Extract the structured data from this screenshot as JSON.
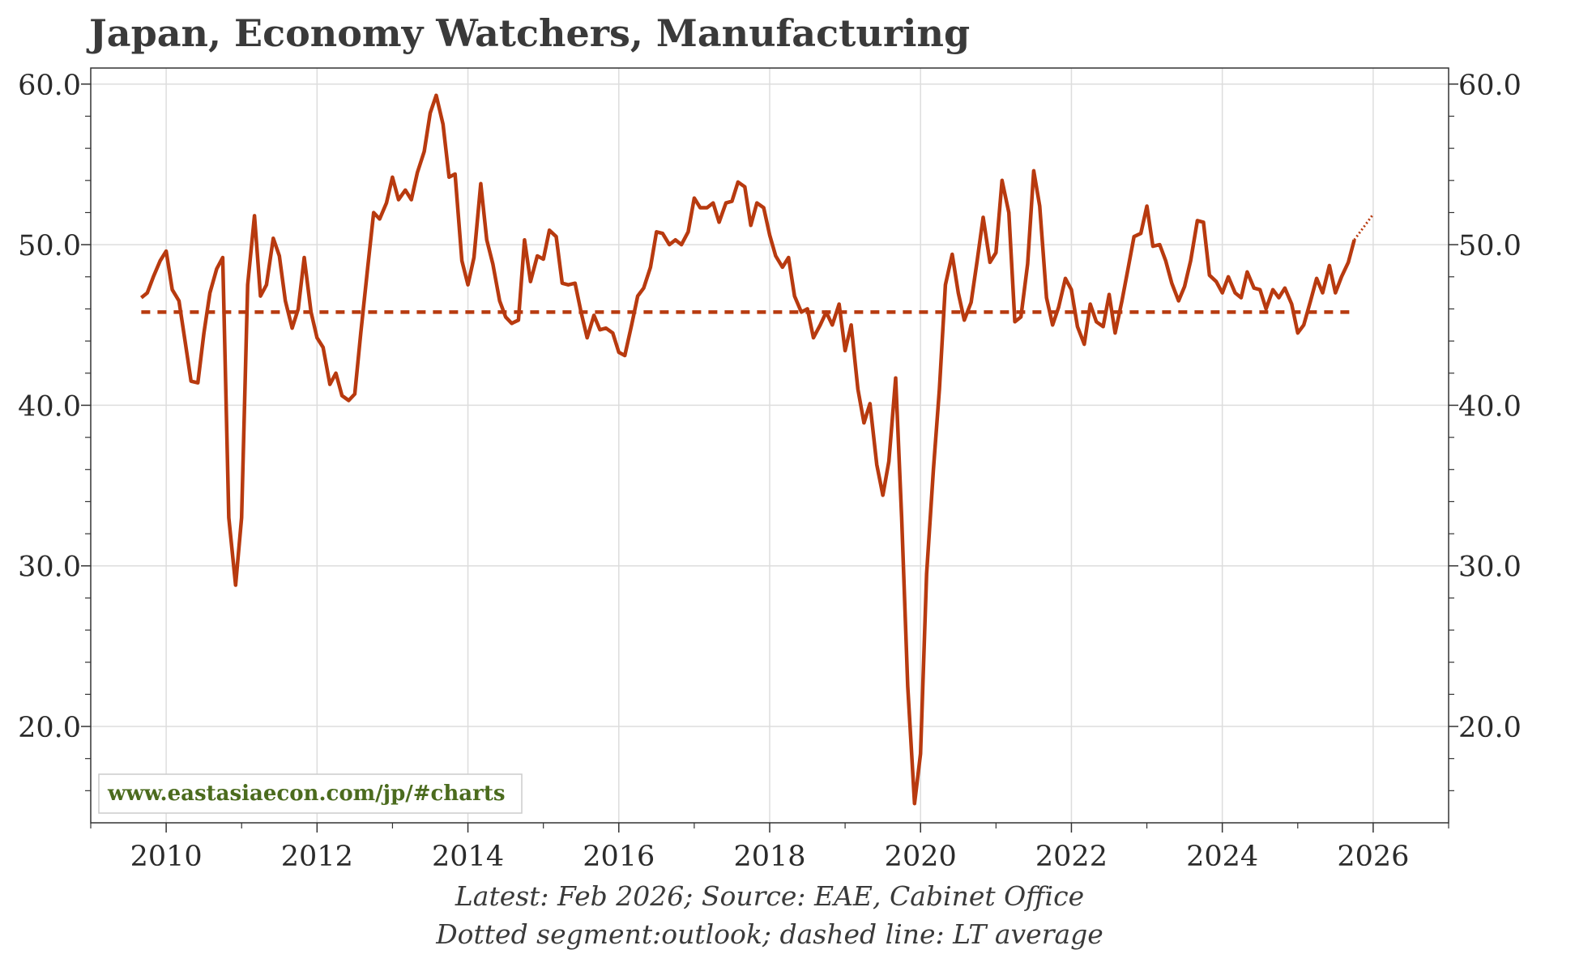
{
  "colors": {
    "series": "#b83a0f",
    "watermark": "#4b6b1e",
    "grid": "#dddddd",
    "axis": "#333333"
  },
  "chart_data": {
    "type": "line",
    "title": "Japan, Economy Watchers, Manufacturing",
    "xlabel": "",
    "ylabel": "",
    "xlim": [
      2009.0,
      2027.0
    ],
    "ylim": [
      14.0,
      61.0
    ],
    "x_ticks": [
      2010,
      2012,
      2014,
      2016,
      2018,
      2020,
      2022,
      2024,
      2026
    ],
    "x_tick_labels": [
      "2010",
      "2012",
      "2014",
      "2016",
      "2018",
      "2020",
      "2022",
      "2024",
      "2026"
    ],
    "y_ticks": [
      20,
      30,
      40,
      50,
      60
    ],
    "y_tick_labels": [
      "20.0",
      "30.0",
      "40.0",
      "50.0",
      "60.0"
    ],
    "grid": true,
    "lt_average": 45.8,
    "series": [
      {
        "name": "Economy Watchers, Manufacturing",
        "style": "solid",
        "points": [
          [
            2009.67,
            46.7
          ],
          [
            2009.75,
            47.0
          ],
          [
            2009.83,
            48.0
          ],
          [
            2009.92,
            49.0
          ],
          [
            2010.0,
            49.6
          ],
          [
            2010.08,
            47.2
          ],
          [
            2010.17,
            46.5
          ],
          [
            2010.25,
            44.0
          ],
          [
            2010.33,
            41.5
          ],
          [
            2010.42,
            41.4
          ],
          [
            2010.5,
            44.5
          ],
          [
            2010.58,
            47.0
          ],
          [
            2010.67,
            48.5
          ],
          [
            2010.75,
            49.2
          ],
          [
            2010.83,
            33.0
          ],
          [
            2010.92,
            28.8
          ],
          [
            2011.0,
            33.0
          ],
          [
            2011.08,
            47.5
          ],
          [
            2011.17,
            51.8
          ],
          [
            2011.25,
            46.8
          ],
          [
            2011.33,
            47.5
          ],
          [
            2011.42,
            50.4
          ],
          [
            2011.5,
            49.3
          ],
          [
            2011.58,
            46.5
          ],
          [
            2011.67,
            44.8
          ],
          [
            2011.75,
            46.0
          ],
          [
            2011.83,
            49.2
          ],
          [
            2011.92,
            45.8
          ],
          [
            2012.0,
            44.2
          ],
          [
            2012.08,
            43.6
          ],
          [
            2012.17,
            41.3
          ],
          [
            2012.25,
            42.0
          ],
          [
            2012.33,
            40.6
          ],
          [
            2012.42,
            40.3
          ],
          [
            2012.5,
            40.7
          ],
          [
            2012.58,
            44.5
          ],
          [
            2012.67,
            48.5
          ],
          [
            2012.75,
            52.0
          ],
          [
            2012.83,
            51.6
          ],
          [
            2012.92,
            52.6
          ],
          [
            2013.0,
            54.2
          ],
          [
            2013.08,
            52.8
          ],
          [
            2013.17,
            53.4
          ],
          [
            2013.25,
            52.8
          ],
          [
            2013.33,
            54.5
          ],
          [
            2013.42,
            55.8
          ],
          [
            2013.5,
            58.2
          ],
          [
            2013.58,
            59.3
          ],
          [
            2013.67,
            57.5
          ],
          [
            2013.75,
            54.2
          ],
          [
            2013.83,
            54.4
          ],
          [
            2013.92,
            49.0
          ],
          [
            2014.0,
            47.5
          ],
          [
            2014.08,
            49.2
          ],
          [
            2014.17,
            53.8
          ],
          [
            2014.25,
            50.3
          ],
          [
            2014.33,
            48.8
          ],
          [
            2014.42,
            46.5
          ],
          [
            2014.5,
            45.5
          ],
          [
            2014.58,
            45.1
          ],
          [
            2014.67,
            45.3
          ],
          [
            2014.75,
            50.3
          ],
          [
            2014.83,
            47.7
          ],
          [
            2014.92,
            49.3
          ],
          [
            2015.0,
            49.1
          ],
          [
            2015.08,
            50.9
          ],
          [
            2015.17,
            50.5
          ],
          [
            2015.25,
            47.6
          ],
          [
            2015.33,
            47.5
          ],
          [
            2015.42,
            47.6
          ],
          [
            2015.5,
            45.8
          ],
          [
            2015.58,
            44.2
          ],
          [
            2015.67,
            45.6
          ],
          [
            2015.75,
            44.7
          ],
          [
            2015.83,
            44.8
          ],
          [
            2015.92,
            44.5
          ],
          [
            2016.0,
            43.3
          ],
          [
            2016.08,
            43.1
          ],
          [
            2016.17,
            45.0
          ],
          [
            2016.25,
            46.8
          ],
          [
            2016.33,
            47.3
          ],
          [
            2016.42,
            48.6
          ],
          [
            2016.5,
            50.8
          ],
          [
            2016.58,
            50.7
          ],
          [
            2016.67,
            50.0
          ],
          [
            2016.75,
            50.3
          ],
          [
            2016.83,
            50.0
          ],
          [
            2016.92,
            50.8
          ],
          [
            2017.0,
            52.9
          ],
          [
            2017.08,
            52.3
          ],
          [
            2017.17,
            52.3
          ],
          [
            2017.25,
            52.6
          ],
          [
            2017.33,
            51.4
          ],
          [
            2017.42,
            52.6
          ],
          [
            2017.5,
            52.7
          ],
          [
            2017.58,
            53.9
          ],
          [
            2017.67,
            53.6
          ],
          [
            2017.75,
            51.2
          ],
          [
            2017.83,
            52.6
          ],
          [
            2017.92,
            52.3
          ],
          [
            2018.0,
            50.6
          ],
          [
            2018.08,
            49.3
          ],
          [
            2018.17,
            48.6
          ],
          [
            2018.25,
            49.2
          ],
          [
            2018.33,
            46.8
          ],
          [
            2018.42,
            45.8
          ],
          [
            2018.5,
            46.0
          ],
          [
            2018.58,
            44.2
          ],
          [
            2018.67,
            45.0
          ],
          [
            2018.75,
            45.8
          ],
          [
            2018.83,
            45.0
          ],
          [
            2018.92,
            46.3
          ],
          [
            2019.0,
            43.4
          ],
          [
            2019.08,
            45.0
          ],
          [
            2019.17,
            41.0
          ],
          [
            2019.25,
            38.9
          ],
          [
            2019.33,
            40.1
          ],
          [
            2019.42,
            36.3
          ],
          [
            2019.5,
            34.4
          ],
          [
            2019.58,
            36.5
          ],
          [
            2019.67,
            41.7
          ],
          [
            2019.75,
            33.0
          ],
          [
            2019.83,
            22.5
          ],
          [
            2019.92,
            15.2
          ],
          [
            2020.0,
            18.3
          ],
          [
            2020.08,
            29.5
          ],
          [
            2020.17,
            36.0
          ],
          [
            2020.25,
            41.0
          ],
          [
            2020.33,
            47.5
          ],
          [
            2020.42,
            49.4
          ],
          [
            2020.5,
            47.0
          ],
          [
            2020.58,
            45.3
          ],
          [
            2020.67,
            46.4
          ],
          [
            2020.75,
            49.0
          ],
          [
            2020.83,
            51.7
          ],
          [
            2020.92,
            48.9
          ],
          [
            2021.0,
            49.5
          ],
          [
            2021.08,
            54.0
          ],
          [
            2021.17,
            52.0
          ],
          [
            2021.25,
            45.2
          ],
          [
            2021.33,
            45.5
          ],
          [
            2021.42,
            48.8
          ],
          [
            2021.5,
            54.6
          ],
          [
            2021.58,
            52.4
          ],
          [
            2021.67,
            46.7
          ],
          [
            2021.75,
            45.0
          ],
          [
            2021.83,
            46.1
          ],
          [
            2021.92,
            47.9
          ],
          [
            2022.0,
            47.2
          ],
          [
            2022.08,
            44.9
          ],
          [
            2022.17,
            43.8
          ],
          [
            2022.25,
            46.3
          ],
          [
            2022.33,
            45.2
          ],
          [
            2022.42,
            44.9
          ],
          [
            2022.5,
            46.9
          ],
          [
            2022.58,
            44.5
          ],
          [
            2022.67,
            46.5
          ],
          [
            2022.75,
            48.5
          ],
          [
            2022.83,
            50.5
          ],
          [
            2022.92,
            50.7
          ],
          [
            2023.0,
            52.4
          ],
          [
            2023.08,
            49.9
          ],
          [
            2023.17,
            50.0
          ],
          [
            2023.25,
            49.0
          ],
          [
            2023.33,
            47.6
          ],
          [
            2023.42,
            46.5
          ],
          [
            2023.5,
            47.4
          ],
          [
            2023.58,
            49.0
          ],
          [
            2023.67,
            51.5
          ],
          [
            2023.75,
            51.4
          ],
          [
            2023.83,
            48.1
          ],
          [
            2023.92,
            47.7
          ],
          [
            2024.0,
            47.0
          ],
          [
            2024.08,
            48.0
          ],
          [
            2024.17,
            47.0
          ],
          [
            2024.25,
            46.7
          ],
          [
            2024.33,
            48.3
          ],
          [
            2024.42,
            47.3
          ],
          [
            2024.5,
            47.2
          ],
          [
            2024.58,
            46.0
          ],
          [
            2024.67,
            47.2
          ],
          [
            2024.75,
            46.7
          ],
          [
            2024.83,
            47.3
          ],
          [
            2024.92,
            46.3
          ],
          [
            2025.0,
            44.5
          ],
          [
            2025.08,
            45.0
          ],
          [
            2025.17,
            46.5
          ],
          [
            2025.25,
            47.9
          ],
          [
            2025.33,
            47.0
          ],
          [
            2025.42,
            48.7
          ],
          [
            2025.5,
            47.0
          ],
          [
            2025.58,
            48.0
          ],
          [
            2025.67,
            48.9
          ],
          [
            2025.75,
            50.3
          ]
        ]
      },
      {
        "name": "Outlook",
        "style": "dotted",
        "points": [
          [
            2025.75,
            50.3
          ],
          [
            2026.0,
            51.9
          ]
        ]
      }
    ],
    "watermark": "www.eastasiaecon.com/jp/#charts",
    "captions": [
      "Latest: Feb 2026; Source: EAE, Cabinet Office",
      "Dotted segment:outlook; dashed line: LT average"
    ]
  }
}
